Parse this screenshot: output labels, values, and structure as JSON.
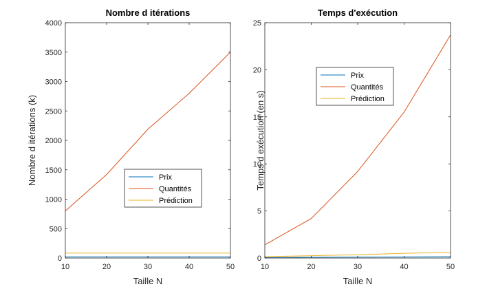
{
  "chart_data": [
    {
      "type": "line",
      "title": "Nombre d itérations",
      "xlabel": "Taille N",
      "ylabel": "Nombre d itérations (k)",
      "xlim": [
        10,
        50
      ],
      "ylim": [
        0,
        4000
      ],
      "xticks": [
        10,
        20,
        30,
        40,
        50
      ],
      "yticks": [
        0,
        500,
        1000,
        1500,
        2000,
        2500,
        3000,
        3500,
        4000
      ],
      "x": [
        10,
        20,
        30,
        40,
        50
      ],
      "series": [
        {
          "name": "Prix",
          "color": "#0072BD",
          "values": [
            20,
            20,
            20,
            20,
            20
          ]
        },
        {
          "name": "Quantités",
          "color": "#D95319",
          "values": [
            800,
            1420,
            2190,
            2800,
            3500
          ]
        },
        {
          "name": "Prédiction",
          "color": "#EDB120",
          "values": [
            85,
            85,
            85,
            85,
            85
          ]
        }
      ],
      "legend_position": "center-bottom",
      "grid": false
    },
    {
      "type": "line",
      "title": "Temps d'exécution",
      "xlabel": "Taille N",
      "ylabel": "Temps d exécution (en s)",
      "xlim": [
        10,
        50
      ],
      "ylim": [
        0,
        25
      ],
      "xticks": [
        10,
        20,
        30,
        40,
        50
      ],
      "yticks": [
        0,
        5,
        10,
        15,
        20,
        25
      ],
      "x": [
        10,
        20,
        30,
        40,
        50
      ],
      "series": [
        {
          "name": "Prix",
          "color": "#0072BD",
          "values": [
            0.05,
            0.08,
            0.1,
            0.12,
            0.15
          ]
        },
        {
          "name": "Quantités",
          "color": "#D95319",
          "values": [
            1.4,
            4.2,
            9.2,
            15.5,
            23.7
          ]
        },
        {
          "name": "Prédiction",
          "color": "#EDB120",
          "values": [
            0.15,
            0.25,
            0.35,
            0.5,
            0.6
          ]
        }
      ],
      "legend_position": "upper-left",
      "grid": false
    }
  ]
}
